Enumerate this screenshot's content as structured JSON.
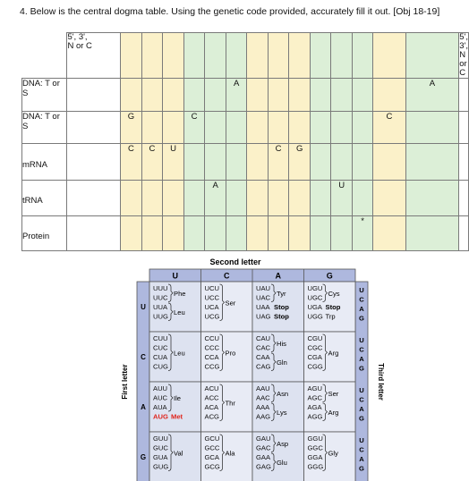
{
  "question": {
    "text": "4.  Below is the central dogma table. Using the genetic code provided, accurately fill it out. [Obj 18-19]"
  },
  "table": {
    "col_header_left": [
      "5', 3',",
      "N or C"
    ],
    "col_header_right": [
      "5', 3',",
      "N or C"
    ],
    "row_labels": {
      "dna1": "DNA: T or S",
      "dna2": "DNA: T or S",
      "mrna": "mRNA",
      "trna": "tRNA",
      "protein": "Protein"
    },
    "dna1_cells": [
      "",
      "",
      "",
      "",
      "",
      "",
      "A",
      "",
      "",
      "",
      "",
      "",
      "",
      "",
      "A",
      ""
    ],
    "dna2_cells": [
      "",
      "G",
      "",
      "",
      "C",
      "",
      "",
      "",
      "",
      "",
      "",
      "",
      "",
      "C",
      "",
      ""
    ],
    "mrna_cells": [
      "",
      "C",
      "C",
      "U",
      "",
      "",
      "",
      "",
      "C",
      "G",
      "",
      "",
      "",
      "",
      "",
      ""
    ],
    "trna_cells": [
      "",
      "",
      "",
      "",
      "",
      "A",
      "",
      "",
      "",
      "",
      "",
      "U",
      "",
      "",
      "",
      ""
    ],
    "protein_cells": [
      "",
      "",
      "",
      "",
      "",
      "",
      "",
      "",
      "",
      "",
      "",
      "",
      "*",
      "",
      "",
      ""
    ]
  },
  "genetic_code": {
    "title": "Second letter",
    "first_letter_label": "First letter",
    "third_letter_label": "Third letter",
    "second_letters": [
      "U",
      "C",
      "A",
      "G"
    ],
    "first_letters": [
      "U",
      "C",
      "A",
      "G"
    ],
    "third_letters": [
      "U",
      "C",
      "A",
      "G"
    ],
    "colors": {
      "header_fill": "#aeb8de",
      "cell_fill": "#dde2f0",
      "cell_fill_alt": "#e8ebf5",
      "grid": "#555555",
      "start_codon": "#e0241b"
    },
    "blocks": [
      {
        "codons": [
          "UUU",
          "UUC",
          "UUA",
          "UUG"
        ],
        "groups": [
          {
            "rows": [
              0,
              1
            ],
            "aa": "Phe"
          },
          {
            "rows": [
              2,
              3
            ],
            "aa": "Leu"
          }
        ]
      },
      {
        "codons": [
          "UCU",
          "UCC",
          "UCA",
          "UCG"
        ],
        "groups": [
          {
            "rows": [
              0,
              3
            ],
            "aa": "Ser"
          }
        ]
      },
      {
        "codons": [
          "UAU",
          "UAC",
          "UAA",
          "UAG"
        ],
        "groups": [
          {
            "rows": [
              0,
              1
            ],
            "aa": "Tyr"
          }
        ],
        "stops": [
          {
            "row": 2,
            "text": "Stop"
          },
          {
            "row": 3,
            "text": "Stop"
          }
        ]
      },
      {
        "codons": [
          "UGU",
          "UGC",
          "UGA",
          "UGG"
        ],
        "groups": [
          {
            "rows": [
              0,
              1
            ],
            "aa": "Cys"
          }
        ],
        "stops": [
          {
            "row": 2,
            "text": "Stop"
          },
          {
            "row": 3,
            "text": "Trp"
          }
        ]
      },
      {
        "codons": [
          "CUU",
          "CUC",
          "CUA",
          "CUG"
        ],
        "groups": [
          {
            "rows": [
              0,
              3
            ],
            "aa": "Leu"
          }
        ]
      },
      {
        "codons": [
          "CCU",
          "CCC",
          "CCA",
          "CCG"
        ],
        "groups": [
          {
            "rows": [
              0,
              3
            ],
            "aa": "Pro"
          }
        ]
      },
      {
        "codons": [
          "CAU",
          "CAC",
          "CAA",
          "CAG"
        ],
        "groups": [
          {
            "rows": [
              0,
              1
            ],
            "aa": "His"
          },
          {
            "rows": [
              2,
              3
            ],
            "aa": "Gln"
          }
        ]
      },
      {
        "codons": [
          "CGU",
          "CGC",
          "CGA",
          "CGG"
        ],
        "groups": [
          {
            "rows": [
              0,
              3
            ],
            "aa": "Arg"
          }
        ]
      },
      {
        "codons": [
          "AUU",
          "AUC",
          "AUA",
          "AUG"
        ],
        "groups": [
          {
            "rows": [
              0,
              2
            ],
            "aa": "Ile"
          }
        ],
        "met": {
          "row": 3,
          "text": "Met"
        }
      },
      {
        "codons": [
          "ACU",
          "ACC",
          "ACA",
          "ACG"
        ],
        "groups": [
          {
            "rows": [
              0,
              3
            ],
            "aa": "Thr"
          }
        ]
      },
      {
        "codons": [
          "AAU",
          "AAC",
          "AAA",
          "AAG"
        ],
        "groups": [
          {
            "rows": [
              0,
              1
            ],
            "aa": "Asn"
          },
          {
            "rows": [
              2,
              3
            ],
            "aa": "Lys"
          }
        ]
      },
      {
        "codons": [
          "AGU",
          "AGC",
          "AGA",
          "AGG"
        ],
        "groups": [
          {
            "rows": [
              0,
              1
            ],
            "aa": "Ser"
          },
          {
            "rows": [
              2,
              3
            ],
            "aa": "Arg"
          }
        ]
      },
      {
        "codons": [
          "GUU",
          "GUC",
          "GUA",
          "GUG"
        ],
        "groups": [
          {
            "rows": [
              0,
              3
            ],
            "aa": "Val"
          }
        ]
      },
      {
        "codons": [
          "GCU",
          "GCC",
          "GCA",
          "GCG"
        ],
        "groups": [
          {
            "rows": [
              0,
              3
            ],
            "aa": "Ala"
          }
        ]
      },
      {
        "codons": [
          "GAU",
          "GAC",
          "GAA",
          "GAG"
        ],
        "groups": [
          {
            "rows": [
              0,
              1
            ],
            "aa": "Asp"
          },
          {
            "rows": [
              2,
              3
            ],
            "aa": "Glu"
          }
        ]
      },
      {
        "codons": [
          "GGU",
          "GGC",
          "GGA",
          "GGG"
        ],
        "groups": [
          {
            "rows": [
              0,
              3
            ],
            "aa": "Gly"
          }
        ]
      }
    ]
  }
}
